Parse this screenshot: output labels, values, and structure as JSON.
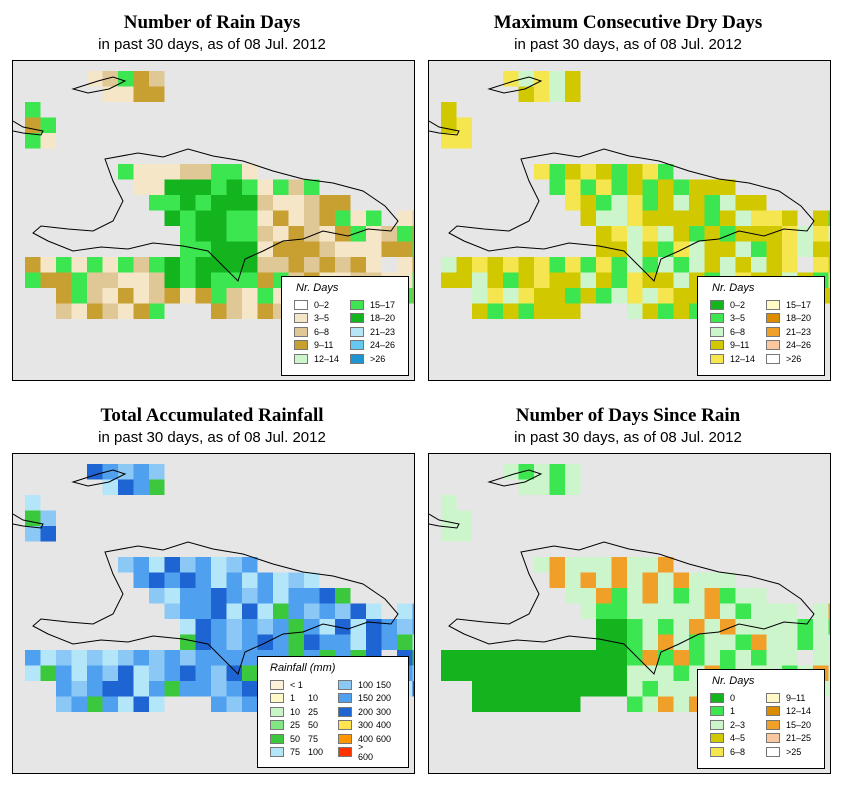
{
  "panels": [
    {
      "id": "rain-days",
      "title": "Number of Rain Days",
      "subtitle": "in past 30 days, as of  08 Jul. 2012",
      "legend_title": "Nr. Days",
      "legend": [
        {
          "label": "0–2",
          "color": "#ffffff"
        },
        {
          "label": "3–5",
          "color": "#f5e6c8"
        },
        {
          "label": "6–8",
          "color": "#e0c896"
        },
        {
          "label": "9–11",
          "color": "#c8a032"
        },
        {
          "label": "12–14",
          "color": "#ccf5cc"
        },
        {
          "label": "15–17",
          "color": "#3ce650"
        },
        {
          "label": "18–20",
          "color": "#14b41e"
        },
        {
          "label": "21–23",
          "color": "#b4e6f5"
        },
        {
          "label": "24–26",
          "color": "#64c8f0"
        },
        {
          "label": ">26",
          "color": "#1e96d2"
        }
      ]
    },
    {
      "id": "dry-days",
      "title": "Maximum Consecutive Dry Days",
      "subtitle": "in past 30 days, as of  08 Jul. 2012",
      "legend_title": "Nr. Days",
      "legend": [
        {
          "label": "0–2",
          "color": "#14b41e"
        },
        {
          "label": "3–5",
          "color": "#3ce650"
        },
        {
          "label": "6–8",
          "color": "#ccf5cc"
        },
        {
          "label": "9–11",
          "color": "#d2c800"
        },
        {
          "label": "12–14",
          "color": "#f5e650"
        },
        {
          "label": "15–17",
          "color": "#fffac8"
        },
        {
          "label": "18–20",
          "color": "#dc8c00"
        },
        {
          "label": "21–23",
          "color": "#f0a028"
        },
        {
          "label": "24–26",
          "color": "#fac8a0"
        },
        {
          "label": ">26",
          "color": "#ffffff"
        }
      ]
    },
    {
      "id": "rainfall",
      "title": "Total Accumulated Rainfall",
      "subtitle": "in past 30 days, as of  08 Jul. 2012",
      "legend_title": "Rainfall (mm)",
      "legend": [
        {
          "lo": "< 1",
          "hi": "",
          "color": "#fff0dc"
        },
        {
          "lo": "1",
          "hi": "10",
          "color": "#fffac8"
        },
        {
          "lo": "10",
          "hi": "25",
          "color": "#c8f5c8"
        },
        {
          "lo": "25",
          "hi": "50",
          "color": "#82e682"
        },
        {
          "lo": "50",
          "hi": "75",
          "color": "#3cc83c"
        },
        {
          "lo": "75",
          "hi": "100",
          "color": "#b4e6fa"
        },
        {
          "lo": "100",
          "hi": "150",
          "color": "#8cc8f5"
        },
        {
          "lo": "150",
          "hi": "200",
          "color": "#50a0f0"
        },
        {
          "lo": "200",
          "hi": "300",
          "color": "#1e64d2"
        },
        {
          "lo": "300",
          "hi": "400",
          "color": "#ffe650"
        },
        {
          "lo": "400",
          "hi": "600",
          "color": "#ff9600"
        },
        {
          "lo": "> 600",
          "hi": "",
          "color": "#ff3200"
        }
      ]
    },
    {
      "id": "days-since-rain",
      "title": "Number of Days Since Rain",
      "subtitle": "in past 30 days, as of  08 Jul. 2012",
      "legend_title": "Nr. Days",
      "legend": [
        {
          "label": "0",
          "color": "#14b41e"
        },
        {
          "label": "1",
          "color": "#3ce650"
        },
        {
          "label": "2–3",
          "color": "#ccf5cc"
        },
        {
          "label": "4–5",
          "color": "#d2c800"
        },
        {
          "label": "6–8",
          "color": "#f5e650"
        },
        {
          "label": "9–11",
          "color": "#fffac8"
        },
        {
          "label": "12–14",
          "color": "#dc8c00"
        },
        {
          "label": "15–20",
          "color": "#f0a028"
        },
        {
          "label": "21–25",
          "color": "#fac8a0"
        },
        {
          "label": ">25",
          "color": "#ffffff"
        }
      ]
    }
  ]
}
